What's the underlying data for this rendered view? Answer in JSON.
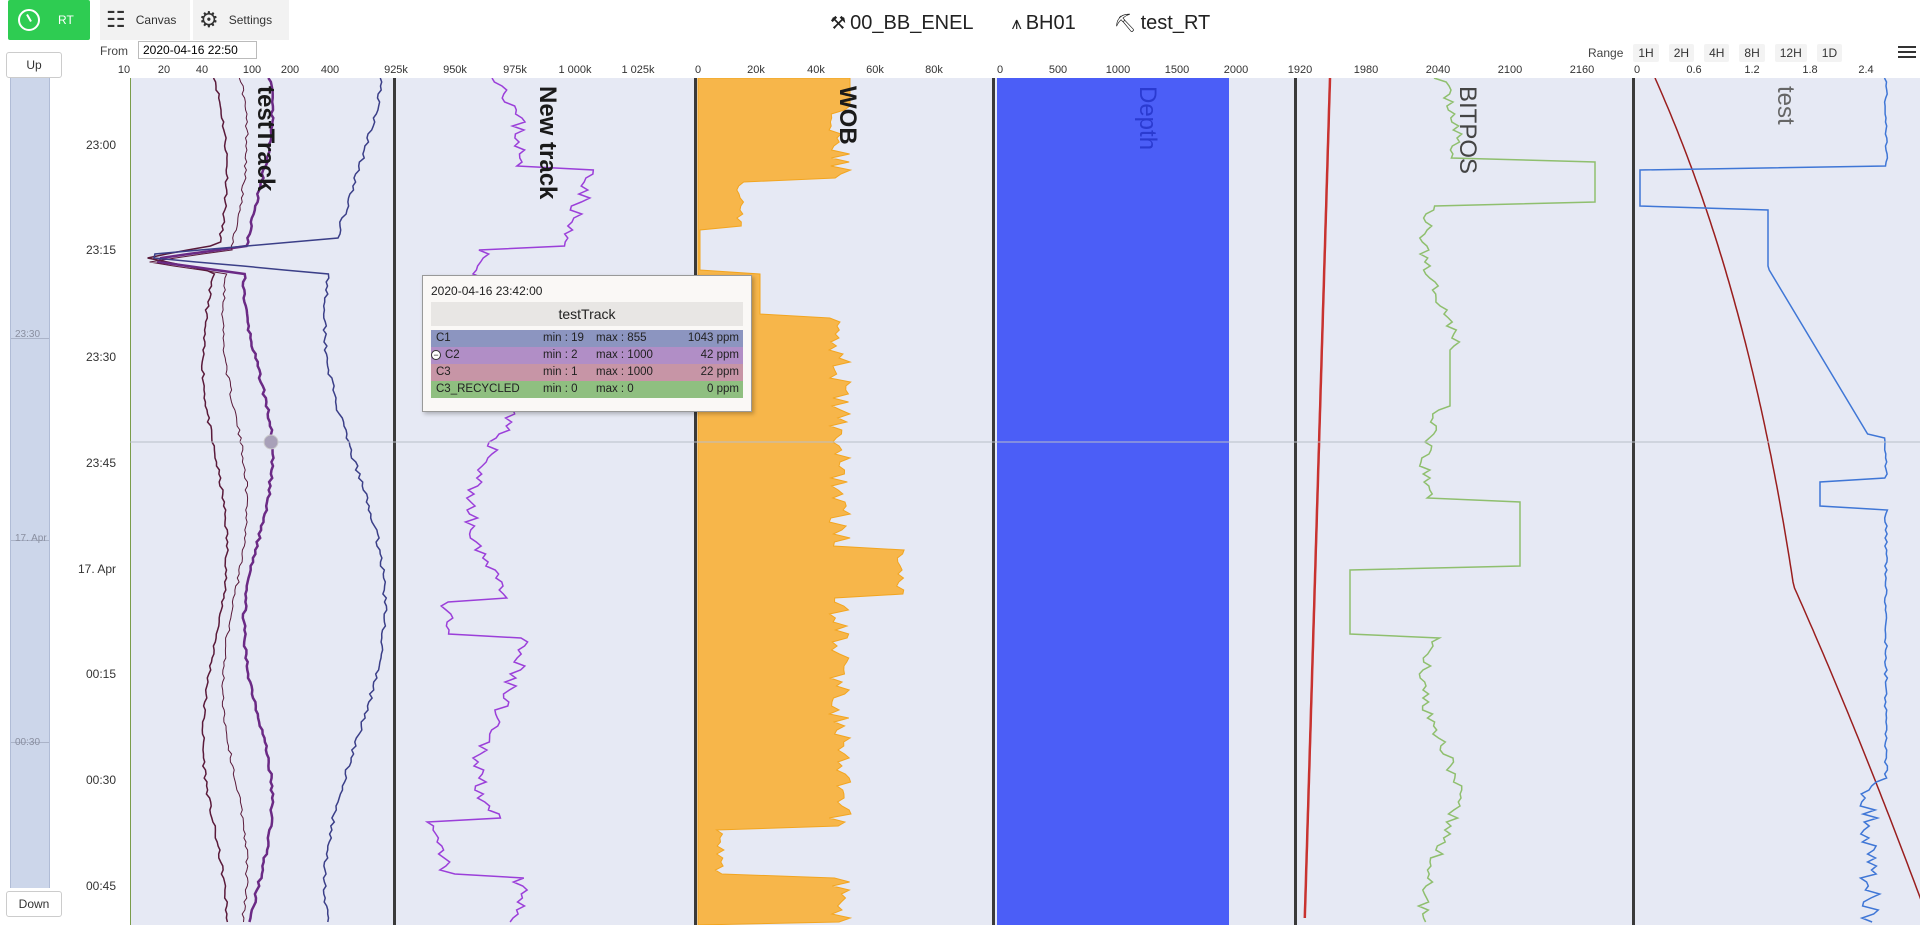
{
  "toolbar": {
    "rt_label": "RT",
    "canvas_label": "Canvas",
    "settings_label": "Settings"
  },
  "header": {
    "rig": "00_BB_ENEL",
    "well": "BH01",
    "run": "test_RT"
  },
  "from": {
    "label": "From",
    "value": "2020-04-16 22:50"
  },
  "range": {
    "label": "Range",
    "options": [
      "1H",
      "2H",
      "4H",
      "8H",
      "12H",
      "1D"
    ]
  },
  "nav": {
    "up_label": "Up",
    "down_label": "Down"
  },
  "minimap": {
    "times": [
      "23:30",
      "17. Apr",
      "00:30"
    ]
  },
  "time_axis": {
    "labels": [
      "23:00",
      "23:15",
      "23:30",
      "23:45",
      "17. Apr",
      "00:15",
      "00:30",
      "00:45"
    ]
  },
  "scales": {
    "track1": [
      "10",
      "20",
      "40",
      "100",
      "200",
      "400"
    ],
    "track2": [
      "925k",
      "950k",
      "975k",
      "1 000k",
      "1 025k"
    ],
    "track3": [
      "0",
      "20k",
      "40k",
      "60k",
      "80k"
    ],
    "track4": [
      "0",
      "500",
      "1000",
      "1500",
      "2000"
    ],
    "track5": [
      "1920",
      "1980",
      "2040",
      "2100",
      "2160"
    ],
    "track6": [
      "0",
      "0.6",
      "1.2",
      "1.8",
      "2.4"
    ]
  },
  "tracks": {
    "t1": "testTrack",
    "t2": "New track",
    "t3": "WOB",
    "t4": "Depth",
    "t5": "BITPOS",
    "t6": "test"
  },
  "colors": {
    "background": "#e6e9f4",
    "rt_green": "#2ecc52",
    "c1": "#5a1a3a",
    "c2": "#6b2a85",
    "c3": "#3b3f88",
    "new_track": "#9b3fd9",
    "wob": "#f7b64a",
    "depth": "#4b5ef7",
    "bitpos": "#8fbf6e",
    "red": "#c8322f",
    "test_red": "#9a1e1e",
    "test_blue": "#3f76d6"
  },
  "tooltip": {
    "date": "2020-04-16 23:42:00",
    "title": "testTrack",
    "rows": [
      {
        "name": "C1",
        "min": "min : 19",
        "max": "max : 855",
        "value": "1043  ppm",
        "color": "#8c95c0"
      },
      {
        "name": "C2",
        "min": "min : 2",
        "max": "max : 1000",
        "value": "42  ppm",
        "color": "#b18ec6"
      },
      {
        "name": "C3",
        "min": "min : 1",
        "max": "max : 1000",
        "value": "22  ppm",
        "color": "#c795a6"
      },
      {
        "name": "C3_RECYCLED",
        "min": "min : 0",
        "max": "max : 0",
        "value": "0  ppm",
        "color": "#8fbf80"
      }
    ]
  }
}
